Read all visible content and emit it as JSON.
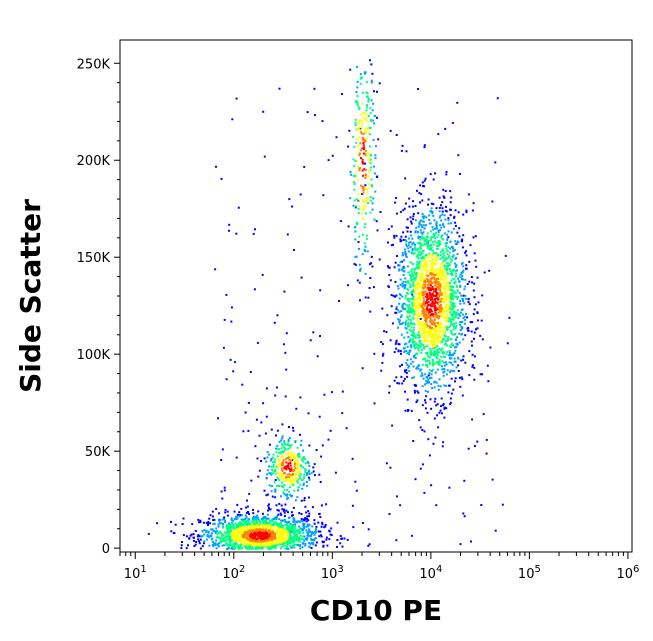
{
  "chart_data": {
    "type": "scatter",
    "title": "",
    "xlabel": "CD10 PE",
    "ylabel": "Side Scatter",
    "x_scale": "log",
    "y_scale": "linear",
    "xlim": [
      7,
      1100000
    ],
    "ylim": [
      -2000,
      262000
    ],
    "x_ticks": [
      {
        "value": 10,
        "base": "10",
        "exp": "1"
      },
      {
        "value": 100,
        "base": "10",
        "exp": "2"
      },
      {
        "value": 1000,
        "base": "10",
        "exp": "3"
      },
      {
        "value": 10000,
        "base": "10",
        "exp": "4"
      },
      {
        "value": 100000,
        "base": "10",
        "exp": "5"
      },
      {
        "value": 1000000,
        "base": "10",
        "exp": "6"
      }
    ],
    "y_ticks": [
      {
        "value": 0,
        "label": "0"
      },
      {
        "value": 50000,
        "label": "50K"
      },
      {
        "value": 100000,
        "label": "100K"
      },
      {
        "value": 150000,
        "label": "150K"
      },
      {
        "value": 200000,
        "label": "200K"
      },
      {
        "value": 250000,
        "label": "250K"
      }
    ],
    "grid": false,
    "legend": "none",
    "color_scale": [
      "#0000ff",
      "#00a0ff",
      "#00ff80",
      "#ffff00",
      "#ff8000",
      "#ff0000"
    ],
    "populations": [
      {
        "x_center": 180,
        "y_center": 7000,
        "x_spread_log": 0.3,
        "y_spread": 5500,
        "points": 1600
      },
      {
        "x_center": 350,
        "y_center": 42000,
        "x_spread_log": 0.12,
        "y_spread": 9000,
        "points": 350
      },
      {
        "x_center": 10000,
        "y_center": 128000,
        "x_spread_log": 0.18,
        "y_spread": 24000,
        "points": 2000
      },
      {
        "x_center": 2000,
        "y_center": 200000,
        "x_spread_log": 0.07,
        "y_spread": 30000,
        "points": 280
      }
    ]
  }
}
